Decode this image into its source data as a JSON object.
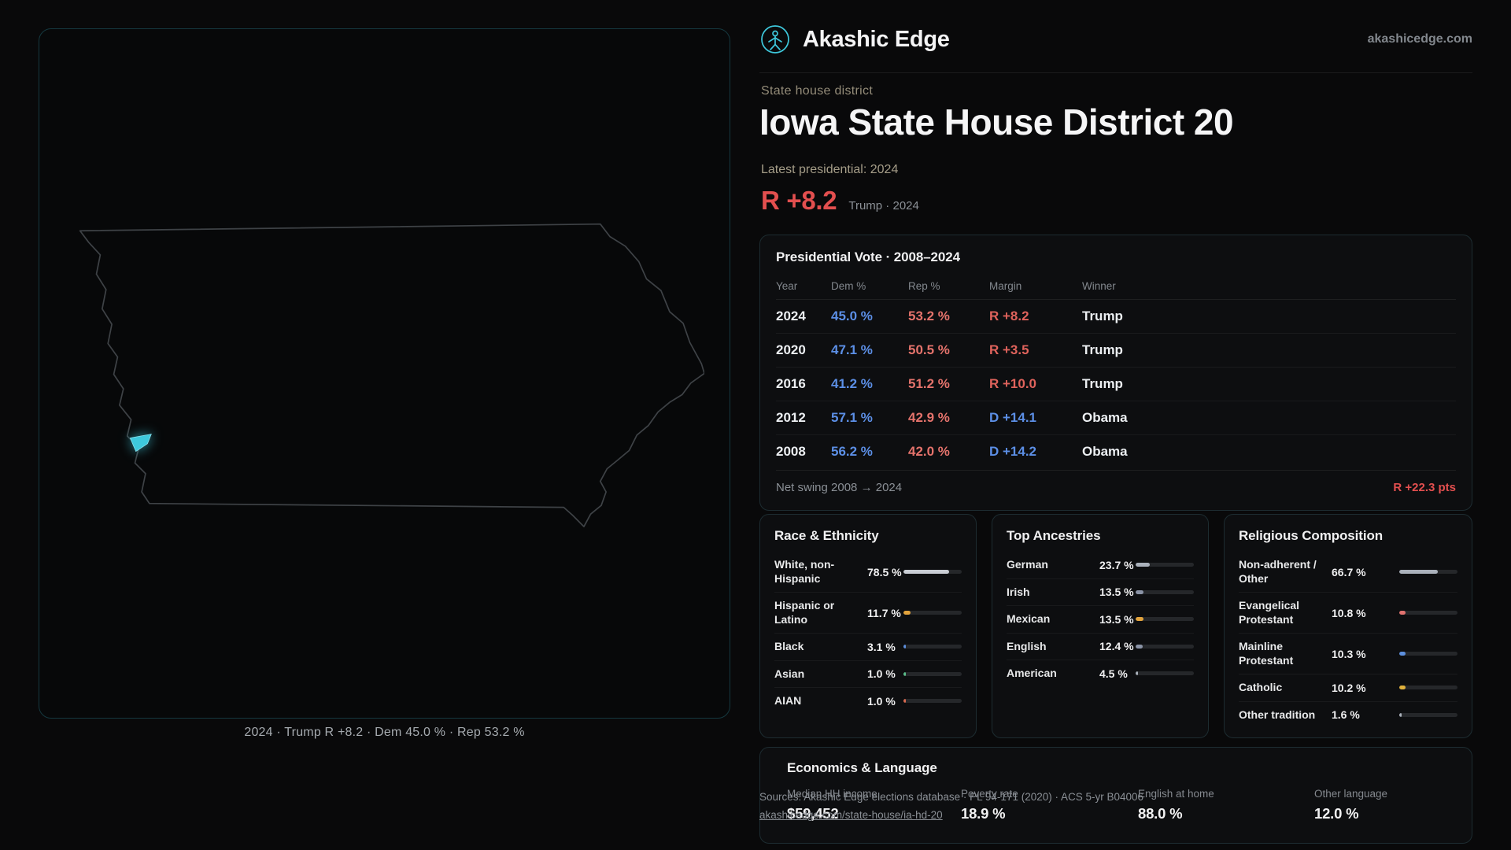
{
  "brand": {
    "name": "Akashic Edge",
    "domain": "akashicedge.com"
  },
  "map": {
    "caption": "2024 · Trump R +8.2 · Dem 45.0 % · Rep 53.2 %"
  },
  "header": {
    "kicker": "State house district",
    "title": "Iowa State House District 20",
    "latest_label": "Latest presidential: 2024",
    "margin_value": "R +8.2",
    "margin_note": "Trump · 2024"
  },
  "presidential": {
    "title": "Presidential Vote · 2008–2024",
    "columns": [
      "Year",
      "Dem %",
      "Rep %",
      "Margin",
      "Winner"
    ],
    "rows": [
      {
        "year": "2024",
        "dem": "45.0 %",
        "rep": "53.2 %",
        "margin": "R +8.2",
        "margin_party": "R",
        "winner": "Trump"
      },
      {
        "year": "2020",
        "dem": "47.1 %",
        "rep": "50.5 %",
        "margin": "R +3.5",
        "margin_party": "R",
        "winner": "Trump"
      },
      {
        "year": "2016",
        "dem": "41.2 %",
        "rep": "51.2 %",
        "margin": "R +10.0",
        "margin_party": "R",
        "winner": "Trump"
      },
      {
        "year": "2012",
        "dem": "57.1 %",
        "rep": "42.9 %",
        "margin": "D +14.1",
        "margin_party": "D",
        "winner": "Obama"
      },
      {
        "year": "2008",
        "dem": "56.2 %",
        "rep": "42.0 %",
        "margin": "D +14.2",
        "margin_party": "D",
        "winner": "Obama"
      }
    ],
    "net_swing_label": "Net swing 2008 → 2024",
    "net_swing_value": "R +22.3 pts"
  },
  "demographics": [
    {
      "title": "Race & Ethnicity",
      "rows": [
        {
          "label": "White, non-Hispanic",
          "value": "78.5 %",
          "pct": 78.5,
          "color": "#c9cdd4"
        },
        {
          "label": "Hispanic or Latino",
          "value": "11.7 %",
          "pct": 11.7,
          "color": "#e2a33c"
        },
        {
          "label": "Black",
          "value": "3.1 %",
          "pct": 3.1,
          "color": "#5d8fdd"
        },
        {
          "label": "Asian",
          "value": "1.0 %",
          "pct": 1.0,
          "color": "#5bbd8a"
        },
        {
          "label": "AIAN",
          "value": "1.0 %",
          "pct": 1.0,
          "color": "#d9694f"
        }
      ]
    },
    {
      "title": "Top Ancestries",
      "rows": [
        {
          "label": "German",
          "value": "23.7 %",
          "pct": 23.7,
          "color": "#aab1bb"
        },
        {
          "label": "Irish",
          "value": "13.5 %",
          "pct": 13.5,
          "color": "#8a93a6"
        },
        {
          "label": "Mexican",
          "value": "13.5 %",
          "pct": 13.5,
          "color": "#e2a33c"
        },
        {
          "label": "English",
          "value": "12.4 %",
          "pct": 12.4,
          "color": "#8a93a6"
        },
        {
          "label": "American",
          "value": "4.5 %",
          "pct": 4.5,
          "color": "#aab1bb"
        }
      ]
    },
    {
      "title": "Religious Composition",
      "rows": [
        {
          "label": "Non-adherent / Other",
          "value": "66.7 %",
          "pct": 66.7,
          "color": "#aab1bb"
        },
        {
          "label": "Evangelical Protestant",
          "value": "10.8 %",
          "pct": 10.8,
          "color": "#e0726f"
        },
        {
          "label": "Mainline Protestant",
          "value": "10.3 %",
          "pct": 10.3,
          "color": "#5d8fdd"
        },
        {
          "label": "Catholic",
          "value": "10.2 %",
          "pct": 10.2,
          "color": "#e0b13c"
        },
        {
          "label": "Other tradition",
          "value": "1.6 %",
          "pct": 1.6,
          "color": "#aab1bb"
        }
      ]
    }
  ],
  "economics": {
    "title": "Economics & Language",
    "stats": [
      {
        "label": "Median HH income",
        "value": "$59,452"
      },
      {
        "label": "Poverty rate",
        "value": "18.9 %"
      },
      {
        "label": "English at home",
        "value": "88.0 %"
      },
      {
        "label": "Other language",
        "value": "12.0 %"
      }
    ]
  },
  "footer": {
    "sources": "Sources: Akashic Edge elections database · PL 94-171 (2020) · ACS 5-yr B04006",
    "permalink": "akashicedge.com/state-house/ia-hd-20"
  }
}
